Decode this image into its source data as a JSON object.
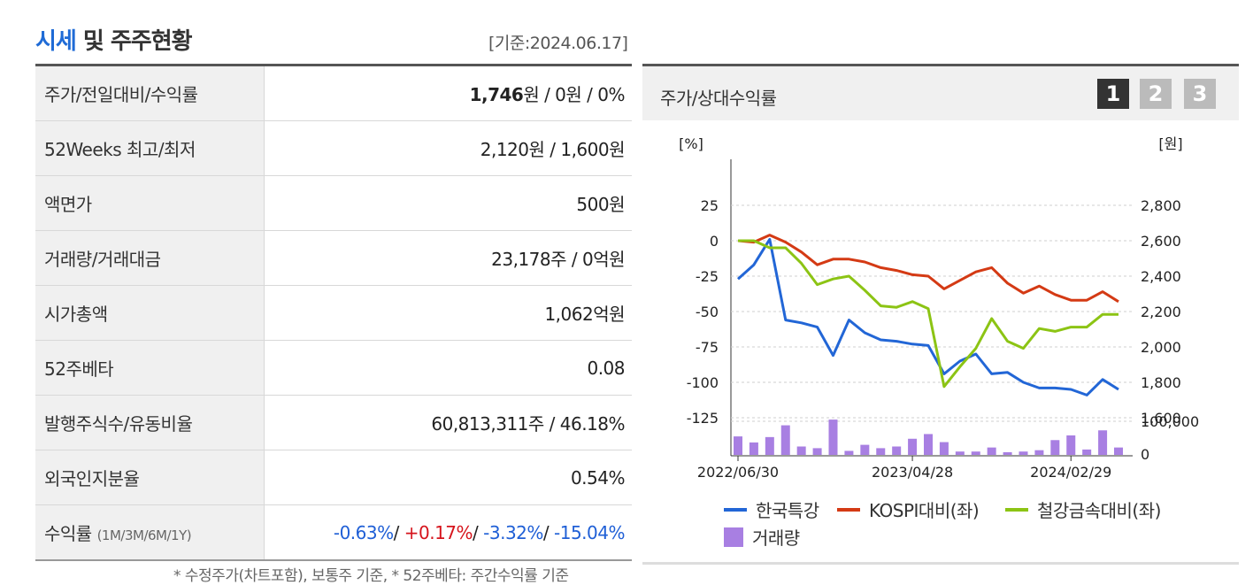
{
  "header": {
    "title_accent": "시세",
    "title_rest": " 및 주주현황",
    "date": "[기준:2024.06.17]"
  },
  "table": {
    "rows": [
      {
        "label": "주가/전일대비/수익률",
        "value_bold": "1,746",
        "value": "원 / 0원 / 0%"
      },
      {
        "label": "52Weeks 최고/최저",
        "value": "2,120원 / 1,600원"
      },
      {
        "label": "액면가",
        "value": "500원"
      },
      {
        "label": "거래량/거래대금",
        "value": "23,178주 / 0억원"
      },
      {
        "label": "시가총액",
        "value": "1,062억원"
      },
      {
        "label": "52주베타",
        "value": "0.08"
      },
      {
        "label": "발행주식수/유동비율",
        "value": "60,813,311주 / 46.18%"
      },
      {
        "label": "외국인지분율",
        "value": "0.54%"
      }
    ],
    "return_row": {
      "label": "수익률",
      "sub": "(1M/3M/6M/1Y)",
      "v1": "-0.63%",
      "sep1": "/ ",
      "v2": "+0.17%",
      "sep2": "/ ",
      "v3": "-3.32%",
      "sep3": "/ ",
      "v4": "-15.04%"
    }
  },
  "footnote": "* 수정주가(차트포함), 보통주 기준, * 52주베타: 주간수익률 기준",
  "panel": {
    "title": "주가/상대수익률",
    "buttons": [
      "1",
      "2",
      "3"
    ],
    "active_button": 0
  },
  "chart_data": {
    "type": "line",
    "left_unit": "[%]",
    "right_unit": "[원]",
    "y_left_ticks": [
      "25",
      "0",
      "-25",
      "-50",
      "-75",
      "-100",
      "-125"
    ],
    "y_right_ticks": [
      "2,800",
      "2,600",
      "2,400",
      "2,200",
      "2,000",
      "1,800",
      "1,600"
    ],
    "volume_ticks": [
      "100,000",
      "0"
    ],
    "x_tick_labels": [
      "2022/06/30",
      "2023/04/28",
      "2024/02/29"
    ],
    "ylim_left": [
      -137,
      28
    ],
    "volume_max": 100000,
    "series": [
      {
        "name": "한국특강",
        "color": "#2266d6",
        "values": [
          -27,
          -17,
          1,
          -56,
          -58,
          -61,
          -81,
          -56,
          -65,
          -70,
          -71,
          -73,
          -74,
          -94,
          -85,
          -80,
          -94,
          -93,
          -100,
          -104,
          -104,
          -105,
          -109,
          -98,
          -105
        ]
      },
      {
        "name": "KOSPI대비(좌)",
        "color": "#d43a14",
        "values": [
          0,
          -1,
          4,
          -1,
          -8,
          -17,
          -13,
          -13,
          -15,
          -19,
          -21,
          -24,
          -25,
          -34,
          -28,
          -22,
          -19,
          -30,
          -37,
          -32,
          -38,
          -42,
          -42,
          -36,
          -43
        ]
      },
      {
        "name": "철강금속대비(좌)",
        "color": "#8cc414",
        "values": [
          0,
          0,
          -5,
          -5,
          -16,
          -31,
          -27,
          -25,
          -35,
          -46,
          -47,
          -43,
          -48,
          -103,
          -89,
          -76,
          -55,
          -71,
          -76,
          -62,
          -64,
          -61,
          -61,
          -52,
          -52
        ]
      }
    ],
    "volume": {
      "name": "거래량",
      "color": "#a87fe2",
      "values": [
        55000,
        37000,
        53000,
        88000,
        25000,
        20000,
        105000,
        12000,
        30000,
        20000,
        25000,
        48000,
        62000,
        38000,
        10000,
        10000,
        22000,
        8000,
        10000,
        14000,
        44000,
        58000,
        16000,
        73000,
        22000
      ]
    }
  }
}
